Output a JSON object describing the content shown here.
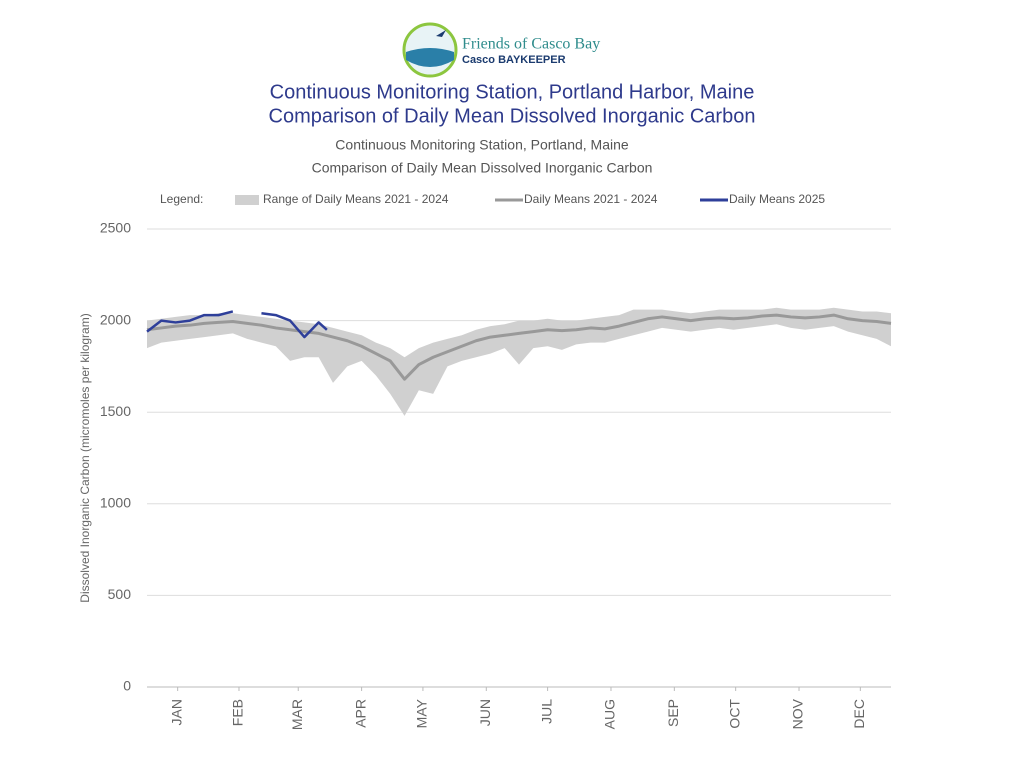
{
  "logo": {
    "name": "Friends of Casco Bay",
    "tagline": "Casco BAYKEEPER"
  },
  "chart_data": {
    "type": "line",
    "title": [
      "Continuous Monitoring Station, Portland Harbor, Maine",
      "Comparison of Daily Mean Dissolved Inorganic Carbon"
    ],
    "subtitle": [
      "Continuous Monitoring Station, Portland, Maine",
      "Comparison of Daily Mean Dissolved Inorganic Carbon"
    ],
    "legend_label": "Legend:",
    "y_label": "Dissolved Inorganic Carbon (micromoles per kilogram)",
    "xlim": [
      1,
      365
    ],
    "xticks": [
      {
        "value": 16,
        "label": "JAN"
      },
      {
        "value": 46,
        "label": "FEB"
      },
      {
        "value": 75,
        "label": "MAR"
      },
      {
        "value": 106,
        "label": "APR"
      },
      {
        "value": 136,
        "label": "MAY"
      },
      {
        "value": 167,
        "label": "JUN"
      },
      {
        "value": 197,
        "label": "JUL"
      },
      {
        "value": 228,
        "label": "AUG"
      },
      {
        "value": 259,
        "label": "SEP"
      },
      {
        "value": 289,
        "label": "OCT"
      },
      {
        "value": 320,
        "label": "NOV"
      },
      {
        "value": 350,
        "label": "DEC"
      }
    ],
    "ylim": [
      0,
      2500
    ],
    "yticks": [
      0,
      500,
      1000,
      1500,
      2000,
      2500
    ],
    "grid": true,
    "x": [
      1,
      8,
      15,
      22,
      29,
      36,
      43,
      50,
      57,
      64,
      71,
      78,
      85,
      92,
      99,
      106,
      113,
      120,
      127,
      134,
      141,
      148,
      155,
      162,
      169,
      176,
      183,
      190,
      197,
      204,
      211,
      218,
      225,
      232,
      239,
      246,
      253,
      260,
      267,
      274,
      281,
      288,
      295,
      302,
      309,
      316,
      323,
      330,
      337,
      344,
      351,
      358,
      365
    ],
    "series": [
      {
        "name": "Range of Daily Means 2021 - 2024",
        "color": "#d0d0d0",
        "low": [
          1850,
          1880,
          1890,
          1900,
          1910,
          1920,
          1930,
          1900,
          1880,
          1860,
          1780,
          1800,
          1800,
          1660,
          1750,
          1780,
          1700,
          1600,
          1480,
          1620,
          1600,
          1750,
          1780,
          1800,
          1820,
          1850,
          1760,
          1850,
          1860,
          1840,
          1870,
          1880,
          1880,
          1900,
          1920,
          1940,
          1960,
          1950,
          1940,
          1950,
          1960,
          1950,
          1960,
          1970,
          1980,
          1960,
          1950,
          1960,
          1970,
          1940,
          1920,
          1900,
          1860
        ],
        "high": [
          2000,
          2010,
          2020,
          2030,
          2030,
          2040,
          2040,
          2030,
          2020,
          2010,
          2000,
          1990,
          1980,
          1960,
          1940,
          1920,
          1880,
          1850,
          1800,
          1850,
          1880,
          1900,
          1920,
          1950,
          1970,
          1980,
          2000,
          2000,
          2010,
          2000,
          2000,
          2010,
          2020,
          2030,
          2060,
          2060,
          2060,
          2050,
          2040,
          2050,
          2060,
          2060,
          2060,
          2060,
          2070,
          2060,
          2060,
          2060,
          2070,
          2060,
          2050,
          2050,
          2040
        ]
      },
      {
        "name": "Daily Means 2021 - 2024",
        "color": "#999999",
        "values": [
          1950,
          1960,
          1970,
          1975,
          1985,
          1990,
          1995,
          1985,
          1975,
          1960,
          1950,
          1940,
          1930,
          1910,
          1890,
          1860,
          1820,
          1780,
          1680,
          1760,
          1800,
          1830,
          1860,
          1890,
          1910,
          1920,
          1930,
          1940,
          1950,
          1945,
          1950,
          1960,
          1955,
          1970,
          1990,
          2010,
          2020,
          2010,
          2000,
          2010,
          2015,
          2010,
          2015,
          2025,
          2030,
          2020,
          2015,
          2020,
          2030,
          2010,
          2000,
          1995,
          1985
        ]
      },
      {
        "name": "Daily Means 2025",
        "color": "#2e3f9a",
        "x": [
          1,
          8,
          15,
          22,
          29,
          36,
          43,
          50,
          57,
          64,
          71,
          78,
          85,
          89
        ],
        "values": [
          1940,
          2000,
          1990,
          2000,
          2030,
          2030,
          2050,
          null,
          2040,
          2030,
          2000,
          1910,
          1990,
          1950
        ]
      }
    ]
  }
}
